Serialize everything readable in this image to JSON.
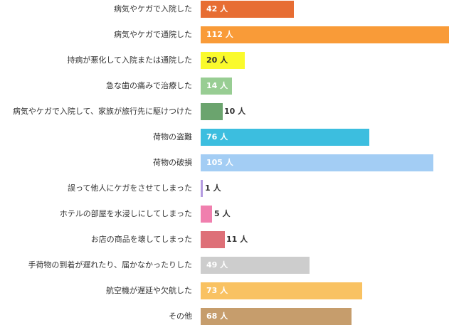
{
  "chart_data": {
    "type": "bar",
    "orientation": "horizontal",
    "unit": "人",
    "categories": [
      "病気やケガで入院した",
      "病気やケガで通院した",
      "持病が悪化して入院または通院した",
      "急な歯の痛みで治療した",
      "病気やケガで入院して、家族が旅行先に駆けつけた",
      "荷物の盗難",
      "荷物の破損",
      "誤って他人にケガをさせてしまった",
      "ホテルの部屋を水浸しにしてしまった",
      "お店の商品を壊してしまった",
      "手荷物の到着が遅れたり、届かなかったりした",
      "航空機が遅延や欠航した",
      "その他"
    ],
    "values": [
      42,
      112,
      20,
      14,
      10,
      76,
      105,
      1,
      5,
      11,
      49,
      73,
      68
    ],
    "value_labels": [
      "42 人",
      "112 人",
      "20 人",
      "14 人",
      "10 人",
      "76 人",
      "105 人",
      "1 人",
      "5 人",
      "11 人",
      "49 人",
      "73 人",
      "68 人"
    ],
    "colors": [
      "#e76d33",
      "#f99b38",
      "#fafa2c",
      "#98cd93",
      "#6ba46e",
      "#3cbedf",
      "#a3cdf4",
      "#b49be0",
      "#f07fae",
      "#de7078",
      "#cdcdcd",
      "#f9c262",
      "#c69d6c"
    ],
    "xlim": [
      0,
      112
    ],
    "grid": false,
    "legend": "none"
  }
}
